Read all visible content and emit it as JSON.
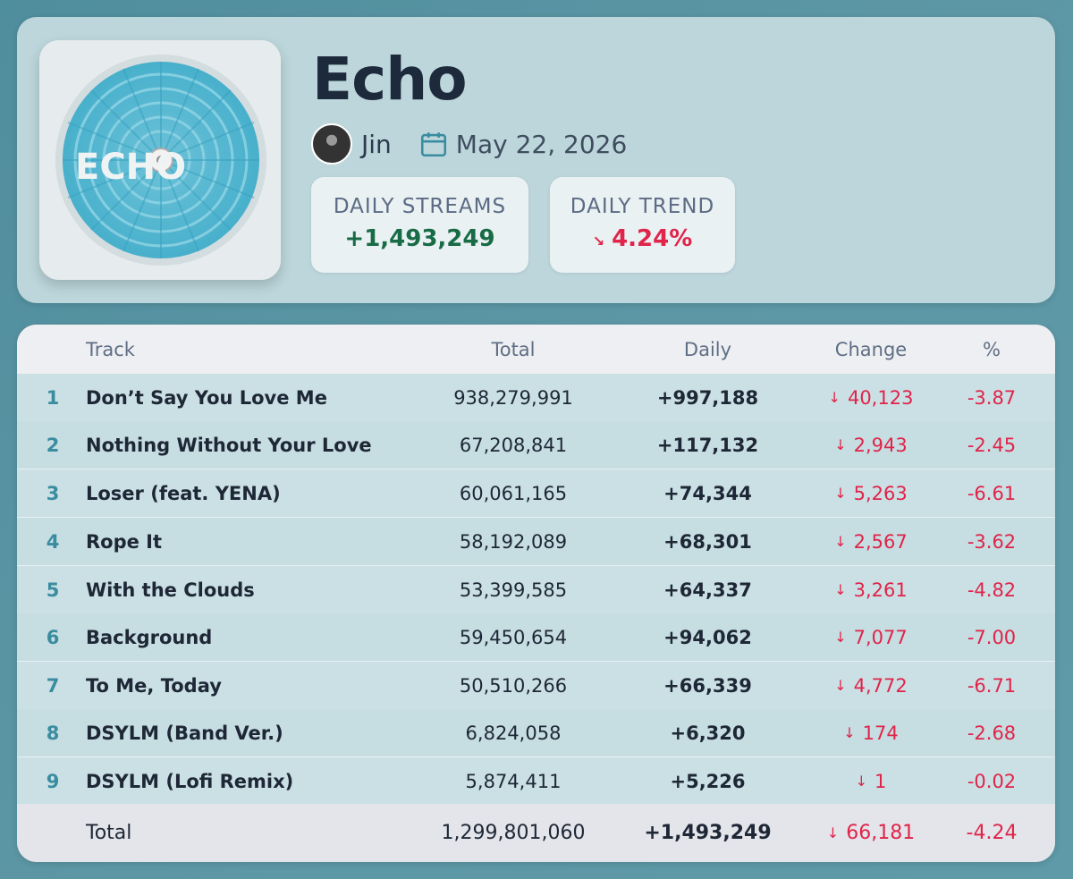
{
  "album": {
    "title": "Echo",
    "artist": "Jin",
    "date": "May 22, 2026",
    "cover_text": "ECHO"
  },
  "stats": {
    "daily_streams_label": "DAILY STREAMS",
    "daily_streams_value": "+1,493,249",
    "daily_trend_label": "DAILY TREND",
    "daily_trend_arrow": "↘",
    "daily_trend_value": "4.24%"
  },
  "table": {
    "headers": {
      "track": "Track",
      "total": "Total",
      "daily": "Daily",
      "change": "Change",
      "pct": "%"
    },
    "rows": [
      {
        "num": "1",
        "track": "Don’t Say You Love Me",
        "total": "938,279,991",
        "daily": "+997,188",
        "change": "40,123",
        "pct": "-3.87"
      },
      {
        "num": "2",
        "track": "Nothing Without Your Love",
        "total": "67,208,841",
        "daily": "+117,132",
        "change": "2,943",
        "pct": "-2.45"
      },
      {
        "num": "3",
        "track": "Loser (feat. YENA)",
        "total": "60,061,165",
        "daily": "+74,344",
        "change": "5,263",
        "pct": "-6.61"
      },
      {
        "num": "4",
        "track": "Rope It",
        "total": "58,192,089",
        "daily": "+68,301",
        "change": "2,567",
        "pct": "-3.62"
      },
      {
        "num": "5",
        "track": "With the Clouds",
        "total": "53,399,585",
        "daily": "+64,337",
        "change": "3,261",
        "pct": "-4.82"
      },
      {
        "num": "6",
        "track": "Background",
        "total": "59,450,654",
        "daily": "+94,062",
        "change": "7,077",
        "pct": "-7.00"
      },
      {
        "num": "7",
        "track": "To Me, Today",
        "total": "50,510,266",
        "daily": "+66,339",
        "change": "4,772",
        "pct": "-6.71"
      },
      {
        "num": "8",
        "track": "DSYLM (Band Ver.)",
        "total": "6,824,058",
        "daily": "+6,320",
        "change": "174",
        "pct": "-2.68"
      },
      {
        "num": "9",
        "track": "DSYLM (Lofi Remix)",
        "total": "5,874,411",
        "daily": "+5,226",
        "change": "1",
        "pct": "-0.02"
      }
    ],
    "footer": {
      "label": "Total",
      "total": "1,299,801,060",
      "daily": "+1,493,249",
      "change": "66,181",
      "pct": "-4.24"
    },
    "down_arrow": "↓"
  },
  "colors": {
    "accent_teal": "#3a8ca0",
    "positive": "#176b45",
    "negative": "#e0244a"
  },
  "icons": {
    "calendar": "calendar-icon",
    "down": "arrow-down-icon",
    "trend_down": "trend-down-icon"
  }
}
